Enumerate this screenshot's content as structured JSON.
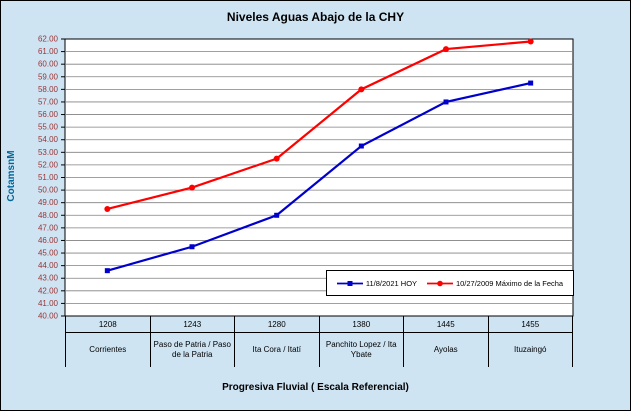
{
  "chart_data": {
    "type": "line",
    "title": "Niveles Aguas Abajo de la CHY",
    "ylabel": "CotamsnM",
    "xlabel": "Progresiva Fluvial ( Escala Referencial)",
    "ylim": [
      40,
      62
    ],
    "y_tick_step": 1,
    "y_tick_decimals": 2,
    "grid": true,
    "legend_position": "inside-bottom-right",
    "categories": [
      {
        "km": "1208",
        "name": "Corrientes"
      },
      {
        "km": "1243",
        "name": "Paso de Patria / Paso de la Patria"
      },
      {
        "km": "1280",
        "name": "Ita Cora / Itatí"
      },
      {
        "km": "1380",
        "name": "Panchito Lopez / Ita Ybate"
      },
      {
        "km": "1445",
        "name": "Ayolas"
      },
      {
        "km": "1455",
        "name": "Ituzaingó"
      }
    ],
    "series": [
      {
        "name": "11/8/2021 HOY",
        "color": "#0000cc",
        "marker": "square",
        "values": [
          43.6,
          45.5,
          48.0,
          53.5,
          57.0,
          58.5
        ]
      },
      {
        "name": "10/27/2009 Máximo de la Fecha",
        "color": "#ff0000",
        "marker": "circle",
        "values": [
          48.5,
          50.2,
          52.5,
          58.0,
          61.2,
          61.8
        ]
      }
    ]
  },
  "colors": {
    "chart_background": "#cfe4f3",
    "plot_background": "#ffffff",
    "gridline": "#808080",
    "axis_line": "#000000",
    "y_tick_label": "#993333",
    "y_axis_title": "#006699",
    "title": "#000000"
  }
}
